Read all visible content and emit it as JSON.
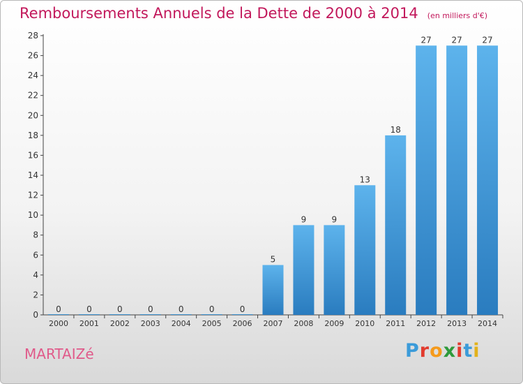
{
  "header": {
    "title": "Remboursements Annuels de la Dette de 2000 à 2014",
    "subtitle": "(en milliers d'€)"
  },
  "commune": "MARTAIZé",
  "logo": {
    "text": "Proxiti",
    "colors": [
      "#3b9bd9",
      "#e23b2e",
      "#f59a1b",
      "#2e9a3b",
      "#e23b2e",
      "#3b9bd9",
      "#e2b21b"
    ]
  },
  "colors": {
    "bar_top": "#5db3ec",
    "bar_bottom": "#2a7cbf",
    "title": "#c2185b"
  },
  "chart_data": {
    "type": "bar",
    "categories": [
      "2000",
      "2001",
      "2002",
      "2003",
      "2004",
      "2005",
      "2006",
      "2007",
      "2008",
      "2009",
      "2010",
      "2011",
      "2012",
      "2013",
      "2014"
    ],
    "values": [
      0,
      0,
      0,
      0,
      0,
      0,
      0,
      5,
      9,
      9,
      13,
      18,
      27,
      27,
      27
    ],
    "title": "Remboursements Annuels de la Dette de 2000 à 2014",
    "xlabel": "",
    "ylabel": "",
    "ylim": [
      0,
      28
    ],
    "yticks": [
      0,
      2,
      4,
      6,
      8,
      10,
      12,
      14,
      16,
      18,
      20,
      22,
      24,
      26,
      28
    ],
    "grid": false,
    "legend": "none"
  }
}
